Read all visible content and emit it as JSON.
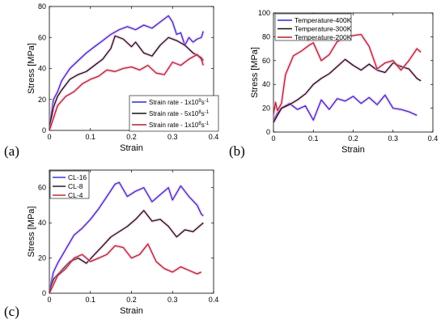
{
  "figure": {
    "panel_labels": [
      "(a)",
      "(b)",
      "(c)"
    ]
  },
  "chart_data": [
    {
      "type": "line",
      "panel": "(a)",
      "xlabel": "Strain",
      "ylabel": "Stress [MPa]",
      "xlim": [
        0,
        0.4
      ],
      "ylim": [
        0,
        80
      ],
      "xticks": [
        "0",
        "0.1",
        "0.2",
        "0.3",
        "0.4"
      ],
      "yticks": [
        "0",
        "20",
        "40",
        "60",
        "80"
      ],
      "grid": false,
      "legend_position": "bottom-right",
      "series": [
        {
          "name": "Strain rate - 1x10⁹s⁻¹",
          "name_base": "Strain rate - 1x10",
          "name_exp": "9",
          "name_unit": "s",
          "name_unit_exp": "-1",
          "color": "#2b2bd4",
          "x": [
            0,
            0.01,
            0.02,
            0.03,
            0.05,
            0.07,
            0.09,
            0.11,
            0.13,
            0.15,
            0.17,
            0.19,
            0.21,
            0.23,
            0.25,
            0.27,
            0.29,
            0.3,
            0.31,
            0.32,
            0.33,
            0.34,
            0.35,
            0.36,
            0.37,
            0.375
          ],
          "y": [
            3,
            20,
            25,
            32,
            40,
            45,
            50,
            54,
            58,
            62,
            65,
            67,
            65,
            68,
            66,
            70,
            74,
            70,
            62,
            63,
            55,
            60,
            57,
            59,
            60,
            64
          ]
        },
        {
          "name": "Strain rate - 5x10⁸s⁻¹",
          "name_base": "Strain rate - 5x10",
          "name_exp": "8",
          "name_unit": "s",
          "name_unit_exp": "-1",
          "color": "#111111",
          "x": [
            0,
            0.01,
            0.02,
            0.03,
            0.05,
            0.07,
            0.09,
            0.11,
            0.13,
            0.15,
            0.16,
            0.18,
            0.2,
            0.21,
            0.23,
            0.25,
            0.27,
            0.29,
            0.31,
            0.33,
            0.35,
            0.37,
            0.375
          ],
          "y": [
            2,
            15,
            22,
            26,
            33,
            36,
            38,
            42,
            46,
            53,
            61,
            59,
            54,
            57,
            50,
            48,
            55,
            60,
            58,
            55,
            50,
            47,
            45
          ]
        },
        {
          "name": "Strain rate - 1x10⁸s⁻¹",
          "name_base": "Strain rate - 1x10",
          "name_exp": "8",
          "name_unit": "s",
          "name_unit_exp": "-1",
          "color": "#b22222",
          "x": [
            0,
            0.02,
            0.04,
            0.06,
            0.08,
            0.1,
            0.12,
            0.14,
            0.16,
            0.18,
            0.2,
            0.22,
            0.24,
            0.26,
            0.28,
            0.3,
            0.32,
            0.34,
            0.36,
            0.37,
            0.375
          ],
          "y": [
            0,
            16,
            22,
            25,
            30,
            33,
            35,
            39,
            38,
            40,
            41,
            39,
            42,
            37,
            36,
            44,
            42,
            46,
            49,
            46,
            42
          ]
        }
      ]
    },
    {
      "type": "line",
      "panel": "(b)",
      "xlabel": "Strain",
      "ylabel": "Stress [MPa]",
      "xlim": [
        0,
        0.4
      ],
      "ylim": [
        0,
        100
      ],
      "xticks": [
        "0",
        "0.1",
        "0.2",
        "0.3",
        "0.4"
      ],
      "yticks": [
        "0",
        "20",
        "40",
        "60",
        "80",
        "100"
      ],
      "grid": false,
      "legend_position": "top-left",
      "series": [
        {
          "name": "Temperature-400K",
          "color": "#2b2bd4",
          "x": [
            0,
            0.01,
            0.02,
            0.04,
            0.06,
            0.08,
            0.1,
            0.12,
            0.14,
            0.16,
            0.18,
            0.2,
            0.22,
            0.24,
            0.26,
            0.28,
            0.3,
            0.32,
            0.34,
            0.36
          ],
          "y": [
            10,
            16,
            20,
            24,
            19,
            22,
            10,
            27,
            19,
            28,
            26,
            30,
            24,
            29,
            23,
            31,
            20,
            19,
            17,
            14
          ]
        },
        {
          "name": "Temperature-300K",
          "color": "#111111",
          "x": [
            0,
            0.01,
            0.02,
            0.04,
            0.06,
            0.08,
            0.1,
            0.12,
            0.14,
            0.16,
            0.18,
            0.2,
            0.22,
            0.24,
            0.26,
            0.28,
            0.3,
            0.32,
            0.34,
            0.36,
            0.37
          ],
          "y": [
            8,
            14,
            20,
            23,
            27,
            32,
            40,
            45,
            49,
            55,
            61,
            56,
            52,
            57,
            52,
            50,
            58,
            55,
            53,
            45,
            43
          ]
        },
        {
          "name": "Temperature-200K",
          "color": "#b22222",
          "x": [
            0,
            0.005,
            0.01,
            0.02,
            0.03,
            0.05,
            0.07,
            0.09,
            0.1,
            0.12,
            0.14,
            0.16,
            0.18,
            0.2,
            0.22,
            0.24,
            0.26,
            0.28,
            0.3,
            0.32,
            0.34,
            0.36,
            0.37
          ],
          "y": [
            15,
            25,
            18,
            24,
            48,
            64,
            68,
            73,
            75,
            60,
            65,
            76,
            79,
            81,
            82,
            72,
            53,
            58,
            60,
            52,
            60,
            70,
            67
          ]
        }
      ]
    },
    {
      "type": "line",
      "panel": "(c)",
      "xlabel": "Strain",
      "ylabel": "Stress [MPa]",
      "xlim": [
        0,
        0.4
      ],
      "ylim": [
        0,
        70
      ],
      "xticks": [
        "0",
        "0.1",
        "0.2",
        "0.3",
        "0.4"
      ],
      "yticks": [
        "0",
        "20",
        "40",
        "60"
      ],
      "grid": false,
      "legend_position": "top-left",
      "series": [
        {
          "name": "CL-16",
          "color": "#2b2bd4",
          "x": [
            0,
            0.01,
            0.02,
            0.04,
            0.06,
            0.08,
            0.1,
            0.12,
            0.14,
            0.16,
            0.17,
            0.19,
            0.21,
            0.23,
            0.25,
            0.27,
            0.29,
            0.3,
            0.32,
            0.34,
            0.36,
            0.37,
            0.375
          ],
          "y": [
            2,
            12,
            17,
            25,
            33,
            37,
            42,
            48,
            55,
            62,
            63,
            55,
            58,
            60,
            52,
            56,
            60,
            53,
            61,
            55,
            50,
            45,
            44
          ]
        },
        {
          "name": "CL-8",
          "color": "#111111",
          "x": [
            0,
            0.01,
            0.03,
            0.05,
            0.07,
            0.09,
            0.11,
            0.13,
            0.15,
            0.17,
            0.19,
            0.21,
            0.23,
            0.25,
            0.27,
            0.29,
            0.31,
            0.33,
            0.35,
            0.37,
            0.375
          ],
          "y": [
            1,
            8,
            13,
            18,
            20,
            17,
            22,
            27,
            32,
            35,
            38,
            42,
            47,
            41,
            42,
            38,
            32,
            36,
            35,
            39,
            40
          ]
        },
        {
          "name": "CL-4",
          "color": "#b22222",
          "x": [
            0,
            0.02,
            0.04,
            0.06,
            0.08,
            0.1,
            0.12,
            0.14,
            0.16,
            0.18,
            0.2,
            0.22,
            0.24,
            0.26,
            0.28,
            0.3,
            0.32,
            0.34,
            0.36,
            0.37
          ],
          "y": [
            0,
            10,
            14,
            20,
            22,
            18,
            20,
            22,
            27,
            26,
            20,
            22,
            28,
            18,
            14,
            12,
            15,
            13,
            11,
            12
          ]
        }
      ]
    }
  ]
}
